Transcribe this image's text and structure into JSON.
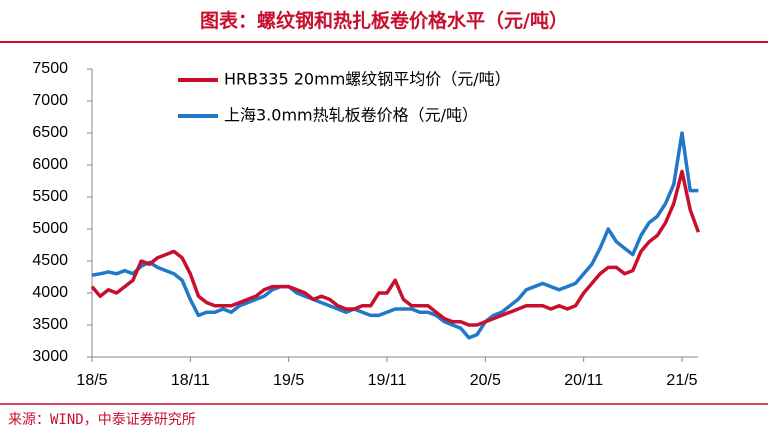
{
  "chart_data": {
    "type": "line",
    "title": "图表：螺纹钢和热扎板卷价格水平（元/吨）",
    "source": "来源：WIND，中泰证券研究所",
    "categories": [
      "18/5",
      null,
      null,
      null,
      null,
      null,
      null,
      null,
      null,
      null,
      null,
      null,
      "18/11",
      null,
      null,
      null,
      null,
      null,
      null,
      null,
      null,
      null,
      null,
      null,
      "19/5",
      null,
      null,
      null,
      null,
      null,
      null,
      null,
      null,
      null,
      null,
      null,
      "19/11",
      null,
      null,
      null,
      null,
      null,
      null,
      null,
      null,
      null,
      null,
      null,
      "20/5",
      null,
      null,
      null,
      null,
      null,
      null,
      null,
      null,
      null,
      null,
      null,
      "20/11",
      null,
      null,
      null,
      null,
      null,
      null,
      null,
      null,
      null,
      null,
      null,
      "21/5",
      null,
      null
    ],
    "series": [
      {
        "name": "HRB335 20mm螺纹钢平均价（元/吨）",
        "color": "#c8102e",
        "values": [
          4100,
          3950,
          4050,
          4000,
          4100,
          4200,
          4500,
          4450,
          4550,
          4600,
          4650,
          4550,
          4300,
          3950,
          3850,
          3800,
          3800,
          3800,
          3850,
          3900,
          3950,
          4050,
          4100,
          4100,
          4100,
          4050,
          4000,
          3900,
          3950,
          3900,
          3800,
          3750,
          3750,
          3800,
          3800,
          4000,
          4000,
          4200,
          3900,
          3800,
          3800,
          3800,
          3700,
          3600,
          3550,
          3550,
          3500,
          3500,
          3550,
          3600,
          3650,
          3700,
          3750,
          3800,
          3800,
          3800,
          3750,
          3800,
          3750,
          3800,
          4000,
          4150,
          4300,
          4400,
          4400,
          4300,
          4350,
          4650,
          4800,
          4900,
          5100,
          5400,
          5900,
          5300,
          4950
        ]
      },
      {
        "name": "上海3.0mm热轧板卷价格（元/吨）",
        "color": "#1f78c8",
        "values": [
          4280,
          4300,
          4330,
          4300,
          4350,
          4300,
          4420,
          4480,
          4400,
          4350,
          4300,
          4200,
          3900,
          3650,
          3700,
          3700,
          3750,
          3700,
          3800,
          3850,
          3900,
          3950,
          4050,
          4100,
          4100,
          4000,
          3950,
          3900,
          3850,
          3800,
          3750,
          3700,
          3750,
          3700,
          3650,
          3650,
          3700,
          3750,
          3750,
          3750,
          3700,
          3700,
          3650,
          3550,
          3500,
          3450,
          3300,
          3350,
          3550,
          3650,
          3700,
          3800,
          3900,
          4050,
          4100,
          4150,
          4100,
          4050,
          4100,
          4150,
          4300,
          4450,
          4700,
          5000,
          4800,
          4700,
          4600,
          4900,
          5100,
          5200,
          5400,
          5700,
          6500,
          5600,
          5600
        ]
      }
    ],
    "ylim": [
      3000,
      7500
    ],
    "yticks": [
      3000,
      3500,
      4000,
      4500,
      5000,
      5500,
      6000,
      6500,
      7000,
      7500
    ],
    "grid": false
  }
}
